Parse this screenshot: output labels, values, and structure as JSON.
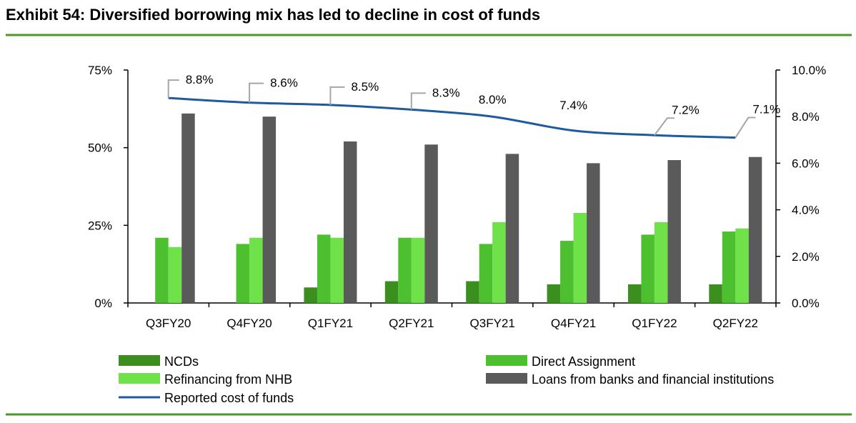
{
  "title": "Exhibit 54: Diversified borrowing mix has led to decline in cost of funds",
  "colors": {
    "rule": "#4a9a2a",
    "axis": "#000000",
    "ncd": "#3a8f1e",
    "da": "#4cc02e",
    "nhb": "#6fe24a",
    "loans": "#5a5a5a",
    "line": "#1f5a9e",
    "leader": "#a6a6a6"
  },
  "chart_data": {
    "type": "bar",
    "categories": [
      "Q3FY20",
      "Q4FY20",
      "Q1FY21",
      "Q2FY21",
      "Q3FY21",
      "Q4FY21",
      "Q1FY22",
      "Q2FY22"
    ],
    "series": [
      {
        "name": "NCDs",
        "axis": "left",
        "values": [
          0,
          0,
          5,
          7,
          7,
          6,
          6,
          6
        ]
      },
      {
        "name": "Direct Assignment",
        "axis": "left",
        "values": [
          21,
          19,
          22,
          21,
          19,
          20,
          22,
          23
        ]
      },
      {
        "name": "Refinancing from NHB",
        "axis": "left",
        "values": [
          18,
          21,
          21,
          21,
          26,
          29,
          26,
          24
        ]
      },
      {
        "name": "Loans from banks and financial institutions",
        "axis": "left",
        "values": [
          61,
          60,
          52,
          51,
          48,
          45,
          46,
          47
        ]
      }
    ],
    "line_series": {
      "name": "Reported cost of funds",
      "type": "line",
      "axis": "right",
      "values": [
        8.8,
        8.6,
        8.5,
        8.3,
        8.0,
        7.4,
        7.2,
        7.1
      ],
      "labels": [
        "8.8%",
        "8.6%",
        "8.5%",
        "8.3%",
        "8.0%",
        "7.4%",
        "7.2%",
        "7.1%"
      ]
    },
    "left_axis": {
      "min": 0,
      "max": 75,
      "ticks": [
        0,
        25,
        50,
        75
      ],
      "tick_labels": [
        "0%",
        "25%",
        "50%",
        "75%"
      ]
    },
    "right_axis": {
      "min": 0,
      "max": 10,
      "ticks": [
        0,
        2,
        4,
        6,
        8,
        10
      ],
      "tick_labels": [
        "0.0%",
        "2.0%",
        "4.0%",
        "6.0%",
        "8.0%",
        "10.0%"
      ]
    },
    "legend": {
      "placement": "bottom",
      "items": [
        "NCDs",
        "Direct Assignment",
        "Refinancing from NHB",
        "Loans from banks and financial institutions",
        "Reported cost of funds"
      ]
    },
    "grid": false
  }
}
